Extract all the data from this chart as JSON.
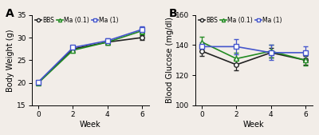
{
  "weeks": [
    0,
    2,
    4,
    6
  ],
  "panel_A": {
    "title": "A",
    "ylabel": "Body Weight (g)",
    "xlabel": "Week",
    "ylim": [
      15,
      35
    ],
    "yticks": [
      15,
      20,
      25,
      30,
      35
    ],
    "BBS": {
      "y": [
        20.1,
        27.5,
        29.0,
        30.0
      ],
      "yerr": [
        0.25,
        0.5,
        0.5,
        0.5
      ]
    },
    "Ma01": {
      "y": [
        20.0,
        27.2,
        29.0,
        31.5
      ],
      "yerr": [
        0.25,
        0.5,
        0.5,
        0.8
      ]
    },
    "Ma1": {
      "y": [
        20.2,
        27.8,
        29.3,
        31.8
      ],
      "yerr": [
        0.25,
        0.5,
        0.6,
        0.7
      ]
    }
  },
  "panel_B": {
    "title": "B",
    "ylabel": "Blood Glucose (mg/dl)",
    "xlabel": "Week",
    "ylim": [
      100,
      160
    ],
    "yticks": [
      100,
      120,
      140,
      160
    ],
    "BBS": {
      "y": [
        136,
        127,
        135,
        130
      ],
      "yerr": [
        3.0,
        3.5,
        3.0,
        3.0
      ]
    },
    "Ma01": {
      "y": [
        142,
        131,
        136,
        130
      ],
      "yerr": [
        3.5,
        4.0,
        4.0,
        3.5
      ]
    },
    "Ma1": {
      "y": [
        139,
        139,
        135,
        135
      ],
      "yerr": [
        3.0,
        5.0,
        5.0,
        4.0
      ]
    }
  },
  "colors": {
    "BBS": "#222222",
    "Ma01": "#228B22",
    "Ma1": "#4455cc"
  },
  "bg_color": "#f2ede8",
  "fontsize": 7,
  "marker_size": 4,
  "line_width": 1.2,
  "cap_size": 2.5,
  "elinewidth": 0.9
}
